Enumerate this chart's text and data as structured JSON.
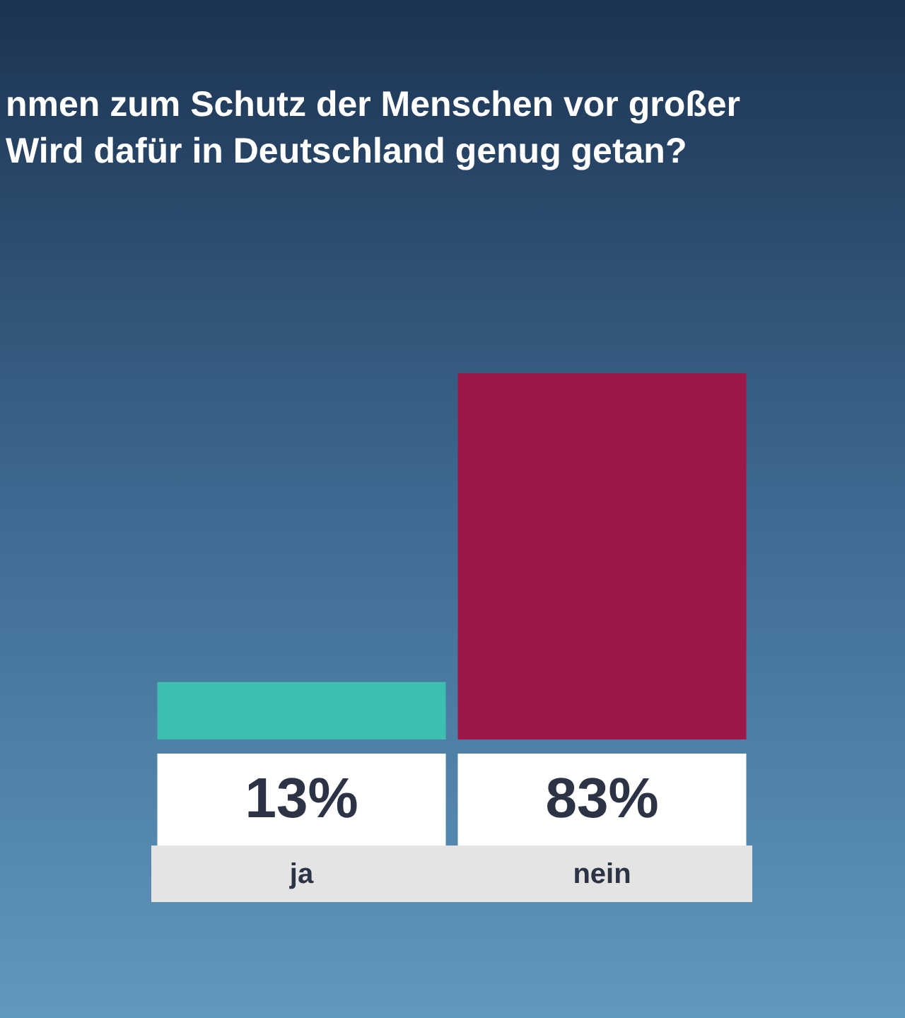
{
  "chart_data": {
    "type": "bar",
    "title": "nmen zum Schutz der Menschen vor großer\nWird dafür in Deutschland genug getan?",
    "categories": [
      "ja",
      "nein"
    ],
    "values": [
      13,
      83
    ],
    "colors": [
      "#3dbfb0",
      "#9b1848"
    ],
    "value_labels": [
      "13%",
      "83%"
    ]
  }
}
